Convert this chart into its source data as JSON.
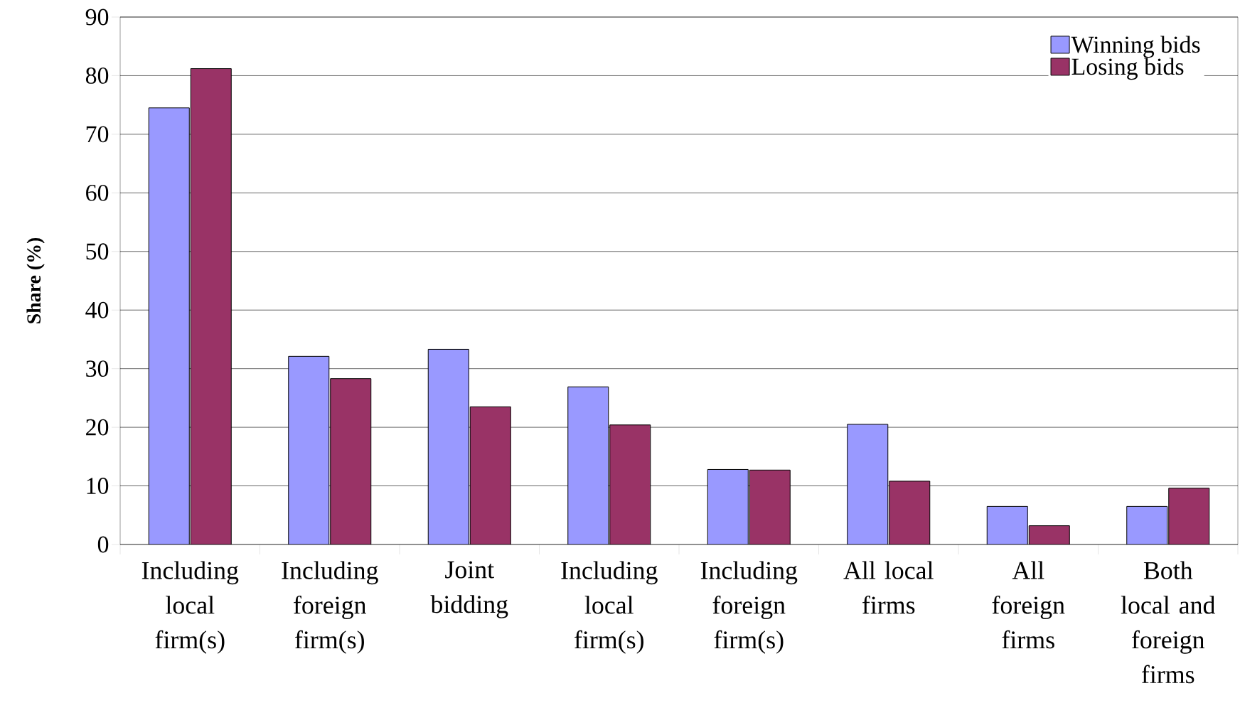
{
  "chart_data": {
    "type": "bar",
    "ylabel": "Share (%)",
    "categories": [
      "Including local firm(s)",
      "Including foreign firm(s)",
      "Joint bidding",
      "Including local firm(s)",
      "Including foreign firm(s)",
      "All local firms",
      "All foreign firms",
      "Both local and foreign firms"
    ],
    "series": [
      {
        "name": "Winning bids",
        "color": "#9999ff",
        "values": [
          74.5,
          32.1,
          33.3,
          26.9,
          12.8,
          20.5,
          6.5,
          6.5
        ]
      },
      {
        "name": "Losing bids",
        "color": "#993366",
        "values": [
          81.2,
          28.3,
          23.5,
          20.4,
          12.7,
          10.8,
          3.2,
          9.6
        ]
      }
    ],
    "ylim": [
      0,
      90
    ],
    "yticks": [
      0,
      10,
      20,
      30,
      40,
      50,
      60,
      70,
      80,
      90
    ],
    "grid": "y",
    "legend": "top right"
  }
}
